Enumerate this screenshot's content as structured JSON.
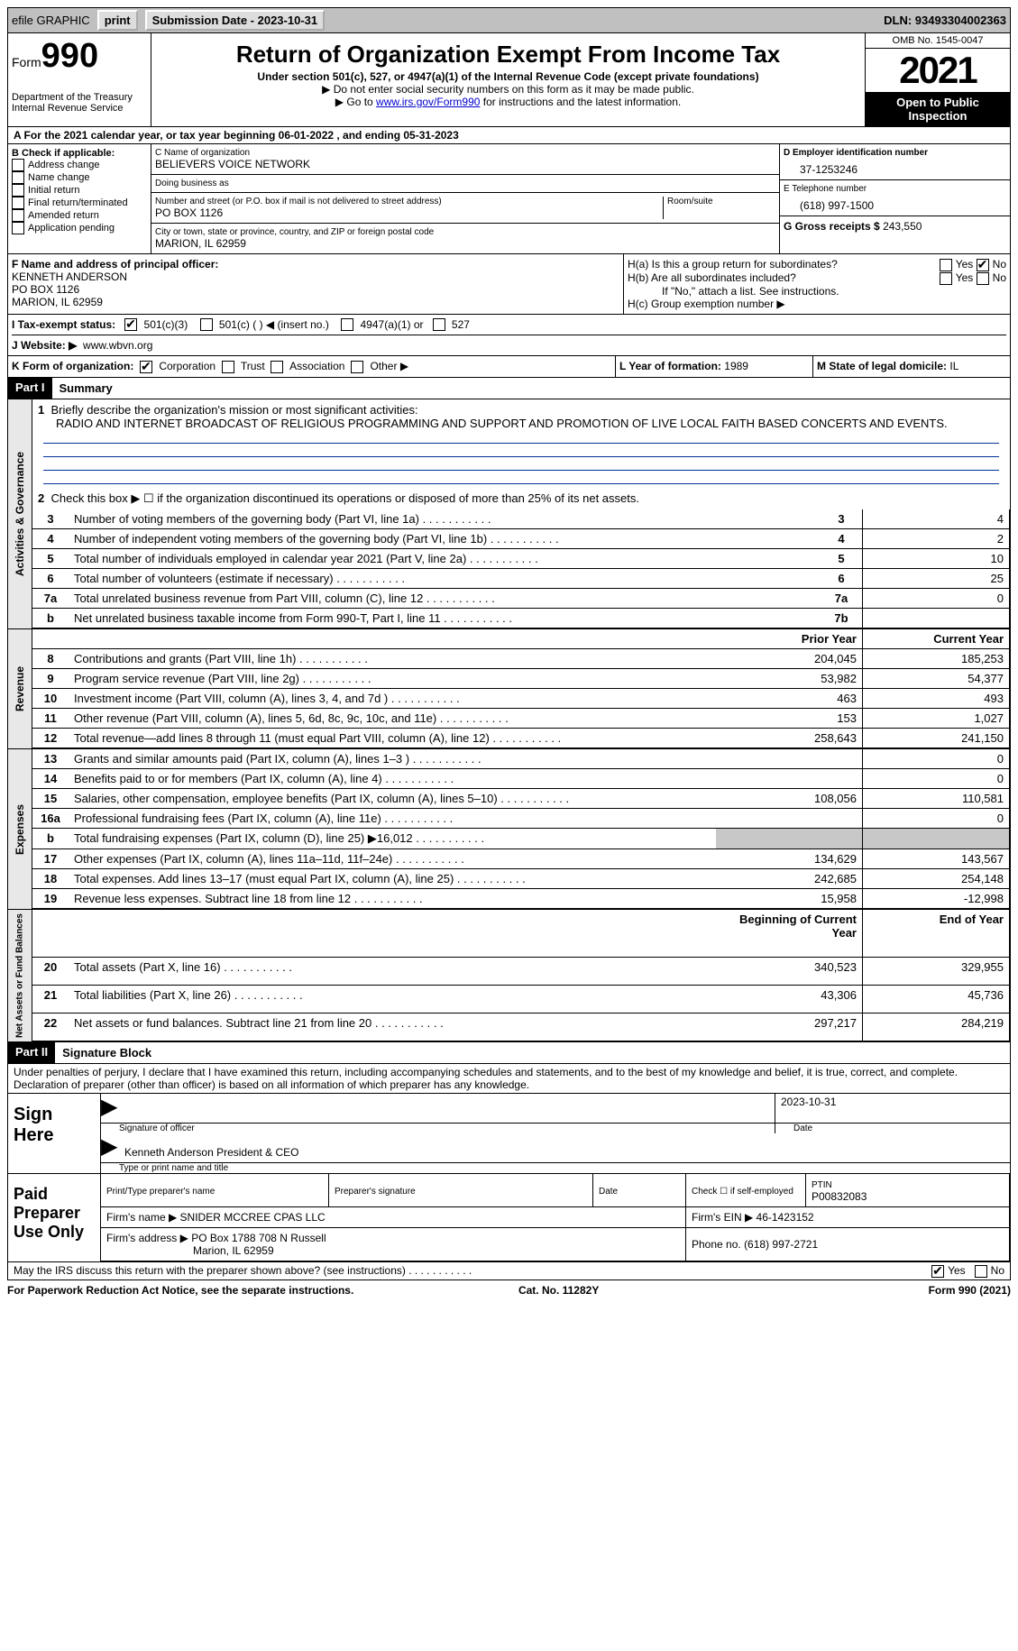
{
  "topbar": {
    "efile": "efile GRAPHIC",
    "print": "print",
    "submission": "Submission Date - 2023-10-31",
    "dln": "DLN: 93493304002363"
  },
  "header": {
    "form": "Form",
    "formNo": "990",
    "dept": "Department of the Treasury",
    "irs": "Internal Revenue Service",
    "title": "Return of Organization Exempt From Income Tax",
    "sub": "Under section 501(c), 527, or 4947(a)(1) of the Internal Revenue Code (except private foundations)",
    "note1": "▶ Do not enter social security numbers on this form as it may be made public.",
    "note2_pre": "▶ Go to ",
    "note2_link": "www.irs.gov/Form990",
    "note2_post": " for instructions and the latest information.",
    "omb": "OMB No. 1545-0047",
    "year": "2021",
    "inspect": "Open to Public Inspection"
  },
  "periodLine": "A For the 2021 calendar year, or tax year beginning 06-01-2022   , and ending 05-31-2023",
  "boxB": {
    "label": "B Check if applicable:",
    "opts": [
      "Address change",
      "Name change",
      "Initial return",
      "Final return/terminated",
      "Amended return",
      "Application pending"
    ]
  },
  "boxC": {
    "nameLabel": "C Name of organization",
    "name": "BELIEVERS VOICE NETWORK",
    "dba": "Doing business as",
    "streetLabel": "Number and street (or P.O. box if mail is not delivered to street address)",
    "room": "Room/suite",
    "street": "PO BOX 1126",
    "cityLabel": "City or town, state or province, country, and ZIP or foreign postal code",
    "city": "MARION, IL  62959"
  },
  "boxD": {
    "label": "D Employer identification number",
    "val": "37-1253246"
  },
  "boxE": {
    "label": "E Telephone number",
    "val": "(618) 997-1500"
  },
  "boxG": {
    "label": "G Gross receipts $",
    "val": "243,550"
  },
  "boxF": {
    "label": "F Name and address of principal officer:",
    "name": "KENNETH ANDERSON",
    "street": "PO BOX 1126",
    "city": "MARION, IL  62959"
  },
  "boxH": {
    "a": "H(a)  Is this a group return for subordinates?",
    "b": "H(b)  Are all subordinates included?",
    "bnote": "If \"No,\" attach a list. See instructions.",
    "c": "H(c)  Group exemption number ▶",
    "yes": "Yes",
    "no": "No"
  },
  "boxI": {
    "label": "I    Tax-exempt status:",
    "o1": "501(c)(3)",
    "o2": "501(c) (  ) ◀ (insert no.)",
    "o3": "4947(a)(1) or",
    "o4": "527"
  },
  "boxJ": {
    "label": "J   Website: ▶",
    "val": "www.wbvn.org"
  },
  "boxK": {
    "label": "K Form of organization:",
    "o1": "Corporation",
    "o2": "Trust",
    "o3": "Association",
    "o4": "Other ▶"
  },
  "boxL": {
    "label": "L Year of formation:",
    "val": "1989"
  },
  "boxM": {
    "label": "M State of legal domicile:",
    "val": "IL"
  },
  "part1": {
    "hdr": "Part I",
    "title": "Summary",
    "l1a": "Briefly describe the organization's mission or most significant activities:",
    "l1b": "RADIO AND INTERNET BROADCAST OF RELIGIOUS PROGRAMMING AND SUPPORT AND PROMOTION OF LIVE LOCAL FAITH BASED CONCERTS AND EVENTS.",
    "l2": "Check this box ▶ ☐  if the organization discontinued its operations or disposed of more than 25% of its net assets.",
    "rows_ag": [
      {
        "n": "3",
        "d": "Number of voting members of the governing body (Part VI, line 1a)",
        "b": "3",
        "v": "4"
      },
      {
        "n": "4",
        "d": "Number of independent voting members of the governing body (Part VI, line 1b)",
        "b": "4",
        "v": "2"
      },
      {
        "n": "5",
        "d": "Total number of individuals employed in calendar year 2021 (Part V, line 2a)",
        "b": "5",
        "v": "10"
      },
      {
        "n": "6",
        "d": "Total number of volunteers (estimate if necessary)",
        "b": "6",
        "v": "25"
      },
      {
        "n": "7a",
        "d": "Total unrelated business revenue from Part VIII, column (C), line 12",
        "b": "7a",
        "v": "0"
      },
      {
        "n": "b",
        "d": "Net unrelated business taxable income from Form 990-T, Part I, line 11",
        "b": "7b",
        "v": ""
      }
    ],
    "col_py": "Prior Year",
    "col_cy": "Current Year",
    "rows_rev": [
      {
        "n": "8",
        "d": "Contributions and grants (Part VIII, line 1h)",
        "py": "204,045",
        "cy": "185,253"
      },
      {
        "n": "9",
        "d": "Program service revenue (Part VIII, line 2g)",
        "py": "53,982",
        "cy": "54,377"
      },
      {
        "n": "10",
        "d": "Investment income (Part VIII, column (A), lines 3, 4, and 7d )",
        "py": "463",
        "cy": "493"
      },
      {
        "n": "11",
        "d": "Other revenue (Part VIII, column (A), lines 5, 6d, 8c, 9c, 10c, and 11e)",
        "py": "153",
        "cy": "1,027"
      },
      {
        "n": "12",
        "d": "Total revenue—add lines 8 through 11 (must equal Part VIII, column (A), line 12)",
        "py": "258,643",
        "cy": "241,150"
      }
    ],
    "rows_exp": [
      {
        "n": "13",
        "d": "Grants and similar amounts paid (Part IX, column (A), lines 1–3 )",
        "py": "",
        "cy": "0"
      },
      {
        "n": "14",
        "d": "Benefits paid to or for members (Part IX, column (A), line 4)",
        "py": "",
        "cy": "0"
      },
      {
        "n": "15",
        "d": "Salaries, other compensation, employee benefits (Part IX, column (A), lines 5–10)",
        "py": "108,056",
        "cy": "110,581"
      },
      {
        "n": "16a",
        "d": "Professional fundraising fees (Part IX, column (A), line 11e)",
        "py": "",
        "cy": "0"
      },
      {
        "n": "b",
        "d": "Total fundraising expenses (Part IX, column (D), line 25) ▶16,012",
        "py": "shade",
        "cy": "shade"
      },
      {
        "n": "17",
        "d": "Other expenses (Part IX, column (A), lines 11a–11d, 11f–24e)",
        "py": "134,629",
        "cy": "143,567"
      },
      {
        "n": "18",
        "d": "Total expenses. Add lines 13–17 (must equal Part IX, column (A), line 25)",
        "py": "242,685",
        "cy": "254,148"
      },
      {
        "n": "19",
        "d": "Revenue less expenses. Subtract line 18 from line 12",
        "py": "15,958",
        "cy": "-12,998"
      }
    ],
    "col_boy": "Beginning of Current Year",
    "col_eoy": "End of Year",
    "rows_na": [
      {
        "n": "20",
        "d": "Total assets (Part X, line 16)",
        "py": "340,523",
        "cy": "329,955"
      },
      {
        "n": "21",
        "d": "Total liabilities (Part X, line 26)",
        "py": "43,306",
        "cy": "45,736"
      },
      {
        "n": "22",
        "d": "Net assets or fund balances. Subtract line 21 from line 20",
        "py": "297,217",
        "cy": "284,219"
      }
    ],
    "vtab_ag": "Activities & Governance",
    "vtab_rev": "Revenue",
    "vtab_exp": "Expenses",
    "vtab_na": "Net Assets or Fund Balances"
  },
  "part2": {
    "hdr": "Part II",
    "title": "Signature Block",
    "decl": "Under penalties of perjury, I declare that I have examined this return, including accompanying schedules and statements, and to the best of my knowledge and belief, it is true, correct, and complete. Declaration of preparer (other than officer) is based on all information of which preparer has any knowledge.",
    "sign_here": "Sign Here",
    "sig_officer": "Signature of officer",
    "sig_date": "2023-10-31",
    "date": "Date",
    "sig_name": "Kenneth Anderson  President & CEO",
    "sig_name_lbl": "Type or print name and title",
    "paid": "Paid Preparer Use Only",
    "p_name_lbl": "Print/Type preparer's name",
    "p_sig_lbl": "Preparer's signature",
    "p_date_lbl": "Date",
    "p_check": "Check ☐ if self-employed",
    "p_ptin_lbl": "PTIN",
    "p_ptin": "P00832083",
    "firm_name_lbl": "Firm's name    ▶",
    "firm_name": "SNIDER MCCREE CPAS LLC",
    "firm_ein_lbl": "Firm's EIN ▶",
    "firm_ein": "46-1423152",
    "firm_addr_lbl": "Firm's address ▶",
    "firm_addr1": "PO Box 1788 708 N Russell",
    "firm_addr2": "Marion, IL  62959",
    "firm_phone_lbl": "Phone no.",
    "firm_phone": "(618) 997-2721",
    "may_irs": "May the IRS discuss this return with the preparer shown above? (see instructions)",
    "yes": "Yes",
    "no": "No"
  },
  "footer": {
    "left": "For Paperwork Reduction Act Notice, see the separate instructions.",
    "mid": "Cat. No. 11282Y",
    "right": "Form 990 (2021)"
  }
}
